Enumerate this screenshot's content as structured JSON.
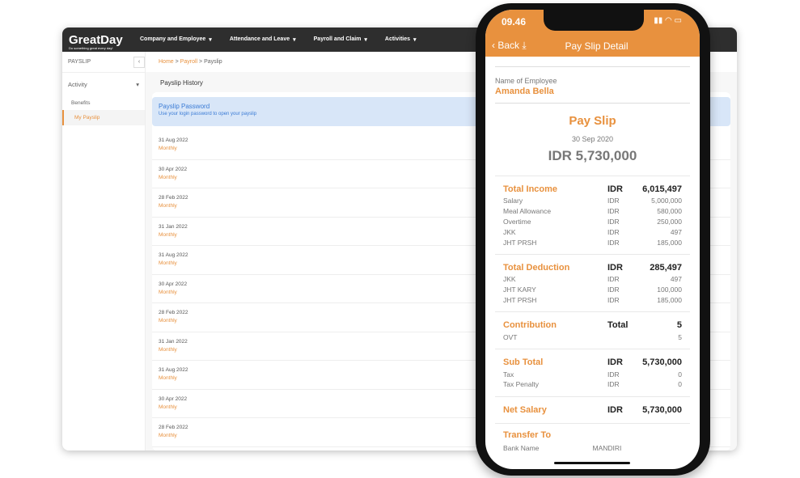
{
  "desktop": {
    "logo": "GreatDay",
    "tagline": "Do something great every day!",
    "nav": [
      "Company and Employee",
      "Attendance and Leave",
      "Payroll and Claim",
      "Activities"
    ],
    "sidebar": {
      "title": "PAYSLIP",
      "group": "Activity",
      "items": [
        "Benefits",
        "My Payslip"
      ]
    },
    "breadcrumb": [
      "Home",
      "Payroll",
      "Payslip"
    ],
    "section_title": "Payslip History",
    "notice": {
      "title": "Payslip Password",
      "text": "Use your login password to open your payslip"
    },
    "rows": [
      {
        "date": "31 Aug 2022",
        "type": "Monthly"
      },
      {
        "date": "30 Apr 2022",
        "type": "Monthly"
      },
      {
        "date": "28 Feb 2022",
        "type": "Monthly"
      },
      {
        "date": "31 Jan 2022",
        "type": "Monthly"
      },
      {
        "date": "31 Aug 2022",
        "type": "Monthly"
      },
      {
        "date": "30 Apr 2022",
        "type": "Monthly"
      },
      {
        "date": "28 Feb 2022",
        "type": "Monthly"
      },
      {
        "date": "31 Jan 2022",
        "type": "Monthly"
      },
      {
        "date": "31 Aug 2022",
        "type": "Monthly"
      },
      {
        "date": "30 Apr 2022",
        "type": "Monthly"
      },
      {
        "date": "28 Feb 2022",
        "type": "Monthly"
      }
    ]
  },
  "phone": {
    "time": "09.46",
    "back": "Back",
    "title": "Pay Slip Detail",
    "employee_label": "Name of Employee",
    "employee": "Amanda Bella",
    "slip_title": "Pay Slip",
    "date": "30 Sep 2020",
    "amount": "IDR 5,730,000",
    "sections": [
      {
        "title": "Total Income",
        "cur": "IDR",
        "value": "6,015,497",
        "lines": [
          [
            "Salary",
            "IDR",
            "5,000,000"
          ],
          [
            "Meal Allowance",
            "IDR",
            "580,000"
          ],
          [
            "Overtime",
            "IDR",
            "250,000"
          ],
          [
            "JKK",
            "IDR",
            "497"
          ],
          [
            "JHT PRSH",
            "IDR",
            "185,000"
          ]
        ]
      },
      {
        "title": "Total Deduction",
        "cur": "IDR",
        "value": "285,497",
        "lines": [
          [
            "JKK",
            "IDR",
            "497"
          ],
          [
            "JHT KARY",
            "IDR",
            "100,000"
          ],
          [
            "JHT PRSH",
            "IDR",
            "185,000"
          ]
        ]
      },
      {
        "title": "Contribution",
        "cur": "Total",
        "value": "5",
        "lines": [
          [
            "OVT",
            "",
            "5"
          ]
        ]
      },
      {
        "title": "Sub Total",
        "cur": "IDR",
        "value": "5,730,000",
        "lines": [
          [
            "Tax",
            "IDR",
            "0"
          ],
          [
            "Tax Penalty",
            "IDR",
            "0"
          ]
        ]
      },
      {
        "title": "Net Salary",
        "cur": "IDR",
        "value": "5,730,000",
        "lines": []
      }
    ],
    "transfer_title": "Transfer To",
    "bank_label": "Bank Name",
    "bank": "MANDIRI"
  },
  "colors": {
    "accent": "#e8913e",
    "topbar": "#2e2e2e",
    "notice": "#d8e6f8"
  }
}
